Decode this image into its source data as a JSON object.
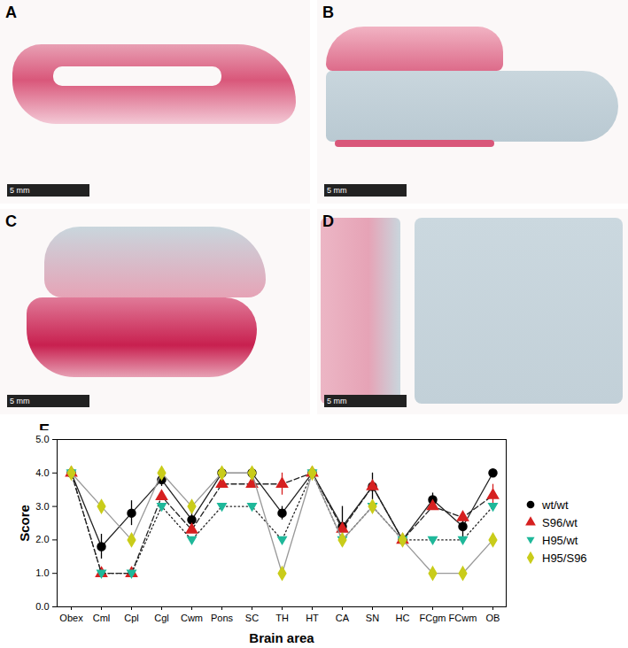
{
  "panels": [
    {
      "label": "A",
      "scale_bar": "5 mm"
    },
    {
      "label": "B",
      "scale_bar": "5 mm"
    },
    {
      "label": "C",
      "scale_bar": "5 mm"
    },
    {
      "label": "D",
      "scale_bar": "5 mm"
    }
  ],
  "chart_data": {
    "type": "line",
    "title": "E",
    "x_label": "Brain area",
    "y_label": "Score",
    "categories": [
      "Obex",
      "Cml",
      "Cpl",
      "Cgl",
      "Cwm",
      "Pons",
      "SC",
      "TH",
      "HT",
      "CA",
      "SN",
      "HC",
      "FCgm",
      "FCwm",
      "OB"
    ],
    "ylim": [
      0,
      5
    ],
    "yticks": [
      0,
      1,
      2,
      3,
      4,
      5
    ],
    "legend": "right",
    "series": [
      {
        "name": "wt/wt",
        "color": "#000000",
        "marker": "circle",
        "line_style": "solid",
        "values": [
          4,
          1.8,
          2.8,
          3.8,
          2.6,
          4,
          4,
          2.8,
          4,
          2.4,
          3.6,
          2,
          3.2,
          2.4,
          4
        ],
        "error": [
          null,
          0.37,
          0.37,
          0.2,
          0.24,
          null,
          null,
          0.2,
          null,
          0.6,
          0.4,
          null,
          0.2,
          0.4,
          null
        ]
      },
      {
        "name": "S96/wt",
        "color": "#d62020",
        "marker": "triangle",
        "line_style": "dashed",
        "values": [
          4,
          1,
          1,
          3.3,
          2.3,
          3.67,
          3.67,
          3.67,
          4,
          2.33,
          3.6,
          2,
          3,
          2.67,
          3.33
        ],
        "error": [
          null,
          null,
          null,
          null,
          null,
          null,
          null,
          0.33,
          null,
          null,
          null,
          null,
          null,
          null,
          0.33
        ]
      },
      {
        "name": "H95/wt",
        "color": "#1fb89a",
        "marker": "triangle-down",
        "line_style": "dotted",
        "values": [
          4,
          1,
          1,
          3,
          2,
          3,
          3,
          2,
          4,
          2,
          3,
          2,
          2,
          2,
          3
        ]
      },
      {
        "name": "H95/S96",
        "color": "#c9cc1a",
        "marker": "diamond",
        "line_style": "solid",
        "values": [
          4,
          3,
          2,
          4,
          3,
          4,
          4,
          1,
          4,
          2,
          3,
          2,
          1,
          1,
          2
        ]
      }
    ]
  }
}
